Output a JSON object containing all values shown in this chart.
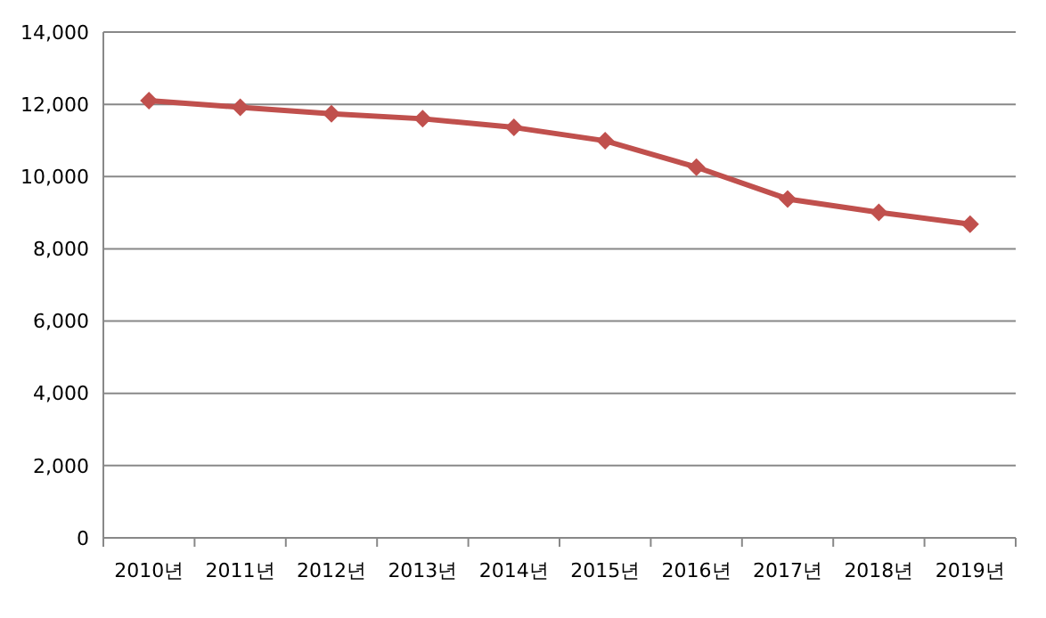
{
  "chart_data": {
    "type": "line",
    "categories": [
      "2010년",
      "2011년",
      "2012년",
      "2013년",
      "2014년",
      "2015년",
      "2016년",
      "2017년",
      "2018년",
      "2019년"
    ],
    "series": [
      {
        "color": "#c0504d",
        "values": [
          12100,
          11920,
          11740,
          11600,
          11360,
          10990,
          10260,
          9380,
          9010,
          8680
        ]
      }
    ],
    "ylim": [
      0,
      14000
    ],
    "yticks": [
      {
        "value": 0,
        "label": "0"
      },
      {
        "value": 2000,
        "label": "2,000"
      },
      {
        "value": 4000,
        "label": "4,000"
      },
      {
        "value": 6000,
        "label": "6,000"
      },
      {
        "value": 8000,
        "label": "8,000"
      },
      {
        "value": 10000,
        "label": "10,000"
      },
      {
        "value": 12000,
        "label": "12,000"
      },
      {
        "value": 14000,
        "label": "14,000"
      }
    ],
    "grid": "y",
    "marker": "diamond",
    "line_style": "solid"
  }
}
